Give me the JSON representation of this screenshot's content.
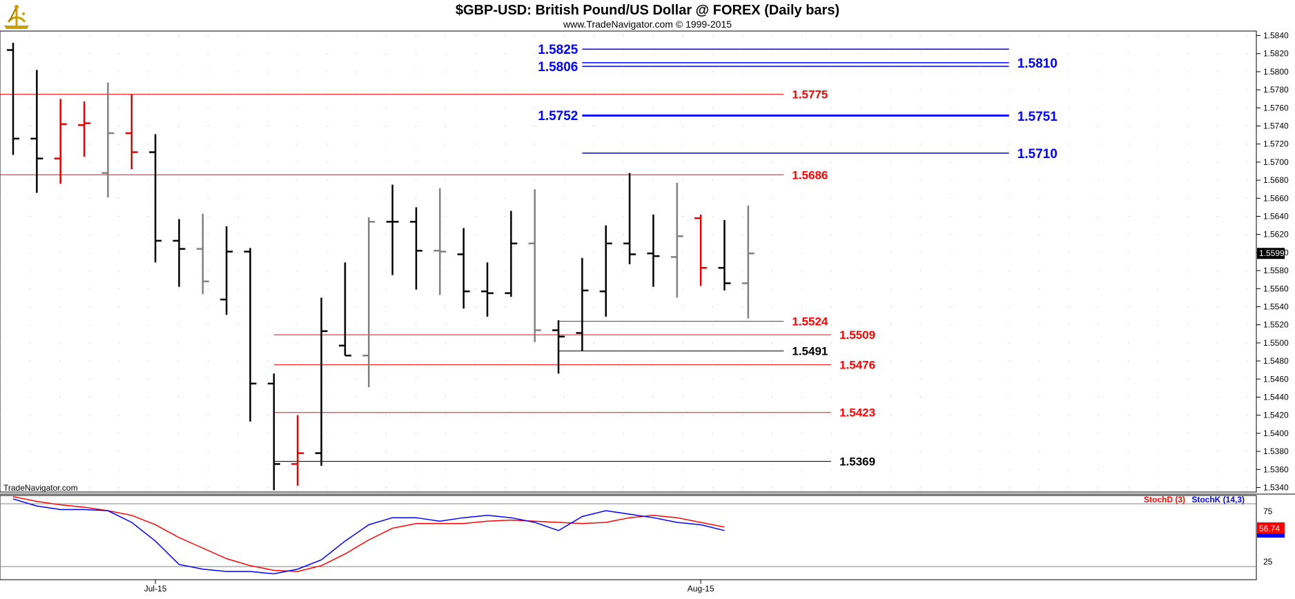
{
  "header": {
    "title": "$GBP-USD:  British Pound/US Dollar @ FOREX  (Daily bars)",
    "subtitle": "www.TradeNavigator.com © 1999-2015",
    "watermark": "TradeNavigator.com",
    "logo_icon": "sextant-logo-icon"
  },
  "colors": {
    "up_bar": "#000000",
    "down_bar": "#e00000",
    "neutral_bar": "#808080",
    "red_level": "#ff0000",
    "blue_level": "#0000ff",
    "stoch_d": "#ff0000",
    "stoch_k": "#0000ff"
  },
  "chart_data": [
    {
      "type": "ohlc",
      "title": "$GBP-USD:  British Pound/US Dollar @ FOREX  (Daily bars)",
      "x_tick_labels": [
        {
          "label": "Jul-15",
          "bar_index": 6
        },
        {
          "label": "Aug-15",
          "bar_index": 29
        }
      ],
      "ylim": [
        1.5335,
        1.5845
      ],
      "y_ticks": [
        "1.5340",
        "1.5360",
        "1.5380",
        "1.5400",
        "1.5420",
        "1.5440",
        "1.5460",
        "1.5480",
        "1.5500",
        "1.5520",
        "1.5540",
        "1.5560",
        "1.5580",
        "1.5600",
        "1.5620",
        "1.5640",
        "1.5660",
        "1.5680",
        "1.5700",
        "1.5720",
        "1.5740",
        "1.5760",
        "1.5780",
        "1.5800",
        "1.5820",
        "1.5840"
      ],
      "last_price_label": "1.5599",
      "bars": [
        {
          "o": 1.5824,
          "h": 1.5832,
          "l": 1.5708,
          "c": 1.5726,
          "color": "black"
        },
        {
          "o": 1.5726,
          "h": 1.5802,
          "l": 1.5666,
          "c": 1.5704,
          "color": "black"
        },
        {
          "o": 1.5704,
          "h": 1.577,
          "l": 1.5676,
          "c": 1.5742,
          "color": "red"
        },
        {
          "o": 1.5741,
          "h": 1.5767,
          "l": 1.5706,
          "c": 1.5743,
          "color": "red"
        },
        {
          "o": 1.5688,
          "h": 1.5788,
          "l": 1.5661,
          "c": 1.5732,
          "color": "gray"
        },
        {
          "o": 1.5732,
          "h": 1.5775,
          "l": 1.5692,
          "c": 1.5711,
          "color": "red"
        },
        {
          "o": 1.5711,
          "h": 1.5731,
          "l": 1.5589,
          "c": 1.5613,
          "color": "black"
        },
        {
          "o": 1.5613,
          "h": 1.5637,
          "l": 1.5562,
          "c": 1.5604,
          "color": "black"
        },
        {
          "o": 1.5604,
          "h": 1.5643,
          "l": 1.5554,
          "c": 1.5568,
          "color": "gray"
        },
        {
          "o": 1.5548,
          "h": 1.5629,
          "l": 1.5531,
          "c": 1.5601,
          "color": "black"
        },
        {
          "o": 1.5601,
          "h": 1.5605,
          "l": 1.5413,
          "c": 1.5455,
          "color": "black"
        },
        {
          "o": 1.5455,
          "h": 1.5466,
          "l": 1.5337,
          "c": 1.5366,
          "color": "black"
        },
        {
          "o": 1.5366,
          "h": 1.542,
          "l": 1.5342,
          "c": 1.5378,
          "color": "red"
        },
        {
          "o": 1.5378,
          "h": 1.555,
          "l": 1.5364,
          "c": 1.5513,
          "color": "black"
        },
        {
          "o": 1.5497,
          "h": 1.5589,
          "l": 1.5486,
          "c": 1.5486,
          "color": "black"
        },
        {
          "o": 1.5486,
          "h": 1.5639,
          "l": 1.5451,
          "c": 1.5634,
          "color": "gray"
        },
        {
          "o": 1.5634,
          "h": 1.5675,
          "l": 1.5575,
          "c": 1.5634,
          "color": "black"
        },
        {
          "o": 1.5634,
          "h": 1.565,
          "l": 1.5559,
          "c": 1.5602,
          "color": "black"
        },
        {
          "o": 1.5602,
          "h": 1.5671,
          "l": 1.5553,
          "c": 1.5601,
          "color": "gray"
        },
        {
          "o": 1.5598,
          "h": 1.5627,
          "l": 1.5538,
          "c": 1.5557,
          "color": "black"
        },
        {
          "o": 1.5557,
          "h": 1.5589,
          "l": 1.5529,
          "c": 1.5555,
          "color": "black"
        },
        {
          "o": 1.5555,
          "h": 1.5646,
          "l": 1.5551,
          "c": 1.561,
          "color": "black"
        },
        {
          "o": 1.561,
          "h": 1.567,
          "l": 1.5501,
          "c": 1.5514,
          "color": "gray"
        },
        {
          "o": 1.5514,
          "h": 1.5525,
          "l": 1.5466,
          "c": 1.5507,
          "color": "black"
        },
        {
          "o": 1.5511,
          "h": 1.5594,
          "l": 1.5491,
          "c": 1.5558,
          "color": "black"
        },
        {
          "o": 1.5557,
          "h": 1.563,
          "l": 1.5529,
          "c": 1.561,
          "color": "black"
        },
        {
          "o": 1.561,
          "h": 1.5688,
          "l": 1.5587,
          "c": 1.5598,
          "color": "black"
        },
        {
          "o": 1.5599,
          "h": 1.5642,
          "l": 1.5562,
          "c": 1.5596,
          "color": "black"
        },
        {
          "o": 1.5595,
          "h": 1.5677,
          "l": 1.555,
          "c": 1.5618,
          "color": "gray"
        },
        {
          "o": 1.5638,
          "h": 1.5642,
          "l": 1.5563,
          "c": 1.5583,
          "color": "red"
        },
        {
          "o": 1.5583,
          "h": 1.5636,
          "l": 1.5558,
          "c": 1.5566,
          "color": "black"
        },
        {
          "o": 1.5566,
          "h": 1.5652,
          "l": 1.5527,
          "c": 1.5599,
          "color": "gray"
        }
      ],
      "levels": [
        {
          "value": 1.5825,
          "label": "1.5825",
          "color": "blue",
          "from": 24,
          "to": 42,
          "label_side": "left"
        },
        {
          "value": 1.581,
          "label": "1.5810",
          "color": "blue",
          "from": 24,
          "to": 42,
          "label_side": "right"
        },
        {
          "value": 1.5806,
          "label": "1.5806",
          "color": "blue",
          "from": 24,
          "to": 42,
          "label_side": "left"
        },
        {
          "value": 1.5752,
          "label": "1.5752",
          "color": "blue",
          "from": 24,
          "to": 42,
          "label_side": "left"
        },
        {
          "value": 1.5751,
          "label": "1.5751",
          "color": "blue",
          "from": 24,
          "to": 42,
          "label_side": "right"
        },
        {
          "value": 1.571,
          "label": "1.5710",
          "color": "blue",
          "from": 24,
          "to": 42,
          "label_side": "right"
        },
        {
          "value": 1.5775,
          "label": "1.5775",
          "color": "red",
          "from": -1,
          "to": 32.5,
          "label_side": "right"
        },
        {
          "value": 1.5686,
          "label": "1.5686",
          "color": "red",
          "from": -1,
          "to": 32.5,
          "label_side": "right"
        },
        {
          "value": 1.5524,
          "label": "1.5524",
          "color": "red",
          "from": 23,
          "to": 32.5,
          "label_side": "right"
        },
        {
          "value": 1.5509,
          "label": "1.5509",
          "color": "red",
          "from": 11,
          "to": 34.5,
          "label_side": "right"
        },
        {
          "value": 1.5491,
          "label": "1.5491",
          "color": "black",
          "from": 23,
          "to": 32.5,
          "label_side": "right"
        },
        {
          "value": 1.5476,
          "label": "1.5476",
          "color": "red",
          "from": 11,
          "to": 34.5,
          "label_side": "right"
        },
        {
          "value": 1.5423,
          "label": "1.5423",
          "color": "red",
          "from": 11,
          "to": 34.5,
          "label_side": "right"
        },
        {
          "value": 1.5369,
          "label": "1.5369",
          "color": "black",
          "from": 11,
          "to": 34.5,
          "label_side": "right"
        }
      ]
    },
    {
      "type": "line",
      "legend": [
        "StochD (3)",
        "StochK (14,3)"
      ],
      "y_ticks": [
        "75",
        "25"
      ],
      "ylim": [
        15,
        87
      ],
      "last_value_label": "56.74",
      "series": [
        {
          "name": "StochD (3)",
          "color": "red",
          "values": [
            86,
            82,
            79,
            77,
            74,
            70,
            62,
            51,
            42,
            33,
            27,
            23,
            22,
            27,
            37,
            49,
            59,
            63,
            63,
            63,
            65,
            66,
            65,
            64,
            63,
            64,
            68,
            70,
            68,
            64,
            60
          ]
        },
        {
          "name": "StochK (14,3)",
          "color": "blue",
          "values": [
            84,
            78,
            75,
            75,
            74,
            64,
            48,
            28,
            24,
            22,
            22,
            20,
            24,
            32,
            48,
            62,
            68,
            68,
            65,
            68,
            70,
            68,
            64,
            57,
            69,
            74,
            71,
            68,
            64,
            62,
            57
          ]
        }
      ]
    }
  ]
}
